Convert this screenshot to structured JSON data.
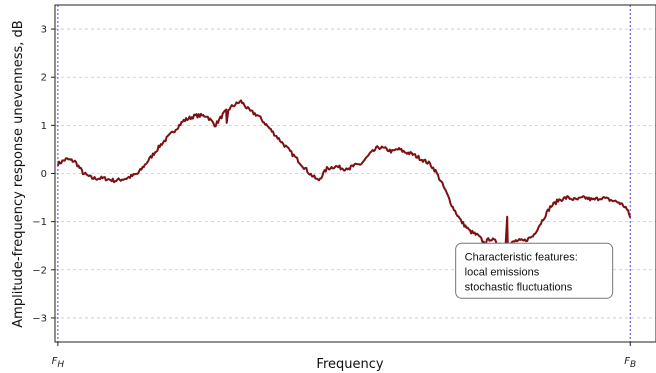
{
  "chart_data": {
    "type": "line",
    "title": "",
    "xlabel": "Frequency",
    "ylabel": "Amplitude-frequency response unevenness, dB",
    "ylim": [
      -3.5,
      3.5
    ],
    "xlim": [
      -0.05,
      10.45
    ],
    "yticks": [
      3,
      2,
      1,
      0,
      -1,
      -2,
      -3
    ],
    "grid": "horizontal-dashed",
    "x_markers": [
      {
        "x": 0,
        "main": "F",
        "sub": "H"
      },
      {
        "x": 10,
        "main": "F",
        "sub": "B"
      }
    ],
    "annotation": {
      "lines": [
        "Characteristic features:",
        "local emissions",
        "stochastic fluctuations"
      ],
      "anchor": [
        6.95,
        -1.45
      ]
    },
    "colors": {
      "line": "#7b1113",
      "marker": "#4a4ae0",
      "grid": "#c8c8c8"
    },
    "series": [
      {
        "x": [
          0.0,
          0.15,
          0.3,
          0.45,
          0.6,
          0.8,
          1.0,
          1.2,
          1.4,
          1.6,
          1.8,
          2.0,
          2.2,
          2.4,
          2.6,
          2.75,
          2.9,
          3.05,
          3.2,
          3.35,
          3.5,
          3.65,
          3.8,
          3.95,
          4.1,
          4.25,
          4.4,
          4.55,
          4.7,
          4.85,
          5.0,
          5.15,
          5.3,
          5.45,
          5.6,
          5.75,
          5.85,
          5.92,
          5.97,
          6.05,
          6.2,
          6.35,
          6.5,
          6.6,
          6.75,
          6.9,
          7.05,
          7.2,
          7.35,
          7.45,
          7.55,
          7.7,
          7.85,
          8.0,
          8.15,
          8.3,
          8.45,
          8.6,
          8.75,
          8.9,
          9.05,
          9.2,
          9.35,
          9.5,
          9.65,
          9.8,
          9.92,
          10.0
        ],
        "y": [
          0.2,
          0.3,
          0.25,
          0.0,
          -0.1,
          -0.1,
          -0.15,
          -0.1,
          0.0,
          0.3,
          0.6,
          0.85,
          1.1,
          1.2,
          1.2,
          1.0,
          1.25,
          1.4,
          1.5,
          1.3,
          1.2,
          1.0,
          0.8,
          0.6,
          0.4,
          0.2,
          0.0,
          -0.15,
          0.1,
          0.15,
          0.1,
          0.15,
          0.2,
          0.4,
          0.55,
          0.5,
          0.45,
          0.5,
          0.5,
          0.45,
          0.4,
          0.3,
          0.2,
          0.05,
          -0.3,
          -0.7,
          -1.0,
          -1.2,
          -1.3,
          -1.45,
          -1.35,
          -1.45,
          -1.5,
          -1.4,
          -1.4,
          -1.3,
          -1.0,
          -0.7,
          -0.55,
          -0.5,
          -0.55,
          -0.5,
          -0.55,
          -0.5,
          -0.55,
          -0.6,
          -0.7,
          -0.9
        ],
        "spikes": [
          {
            "x": 2.95,
            "y": 1.05
          },
          {
            "x": 5.1,
            "y": 0.08
          },
          {
            "x": 7.85,
            "y": -0.9
          }
        ]
      }
    ]
  }
}
